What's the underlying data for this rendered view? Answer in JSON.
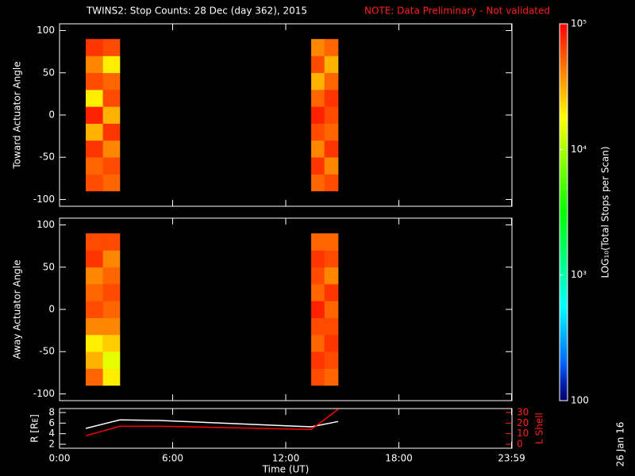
{
  "chart_data": [
    {
      "type": "heatmap",
      "title": "TWINS2: Stop Counts: 28 Dec (day 362), 2015",
      "note": "NOTE: Data Preliminary - Not validated",
      "ylabel": "Toward Actuator Angle",
      "ylim": [
        -108,
        108
      ],
      "yticks": [
        -100,
        -50,
        0,
        50,
        100
      ],
      "xlim": [
        0,
        24
      ],
      "segments": [
        {
          "x_edges": [
            1.39,
            2.3,
            3.2
          ],
          "y_edges": [
            -90,
            -70,
            -50,
            -30,
            -10,
            10,
            30,
            50,
            70,
            90
          ],
          "values": [
            [
              60000,
              50000,
              70000,
              30000,
              80000,
              20000,
              60000,
              40000,
              70000
            ],
            [
              50000,
              60000,
              40000,
              70000,
              30000,
              60000,
              50000,
              20000,
              60000
            ]
          ]
        },
        {
          "x_edges": [
            13.35,
            14.05,
            14.78
          ],
          "y_edges": [
            -90,
            -70,
            -50,
            -30,
            -10,
            10,
            30,
            50,
            70,
            90
          ],
          "values": [
            [
              50000,
              70000,
              40000,
              60000,
              80000,
              50000,
              30000,
              60000,
              40000
            ],
            [
              60000,
              40000,
              70000,
              50000,
              60000,
              70000,
              50000,
              30000,
              50000
            ]
          ]
        }
      ],
      "colorbar": {
        "label": "LOG₁₀(Total Stops per Scan)",
        "lim": [
          100,
          100000
        ],
        "log": true,
        "ticks": [
          {
            "value": 100,
            "label": "100"
          },
          {
            "value": 1000,
            "label": "10³"
          },
          {
            "value": 10000,
            "label": "10⁴"
          },
          {
            "value": 100000,
            "label": "10⁵"
          }
        ]
      }
    },
    {
      "type": "heatmap",
      "ylabel": "Away Actuator Angle",
      "ylim": [
        -108,
        108
      ],
      "yticks": [
        -100,
        -50,
        0,
        50,
        100
      ],
      "xlim": [
        0,
        24
      ],
      "segments": [
        {
          "x_edges": [
            1.39,
            2.3,
            3.2
          ],
          "y_edges": [
            -90,
            -70,
            -50,
            -30,
            -10,
            10,
            30,
            50,
            70,
            90
          ],
          "values": [
            [
              50000,
              30000,
              20000,
              40000,
              60000,
              50000,
              40000,
              70000,
              60000
            ],
            [
              20000,
              15000,
              25000,
              40000,
              50000,
              60000,
              50000,
              40000,
              60000
            ]
          ]
        },
        {
          "x_edges": [
            13.35,
            14.05,
            14.78
          ],
          "y_edges": [
            -90,
            -70,
            -50,
            -30,
            -10,
            10,
            30,
            50,
            70,
            90
          ],
          "values": [
            [
              60000,
              70000,
              50000,
              60000,
              80000,
              50000,
              60000,
              70000,
              50000
            ],
            [
              50000,
              60000,
              70000,
              60000,
              50000,
              70000,
              40000,
              60000,
              50000
            ]
          ]
        }
      ]
    },
    {
      "type": "line",
      "ylabel": "R [Rᴇ]",
      "y2label": "L Shell",
      "xlabel": "Time (UT)",
      "xlim": [
        0,
        24
      ],
      "xticks": [
        {
          "value": 0,
          "label": "0:00"
        },
        {
          "value": 6,
          "label": "6:00"
        },
        {
          "value": 12,
          "label": "12:00"
        },
        {
          "value": 18,
          "label": "18:00"
        },
        {
          "value": 23.98,
          "label": "23:59"
        }
      ],
      "ylim": [
        1.25,
        8.75
      ],
      "yticks": [
        2,
        4,
        6,
        8
      ],
      "y2lim": [
        -3.75,
        33.75
      ],
      "y2ticks": [
        0,
        10,
        20,
        30
      ],
      "x": [
        1.39,
        3.2,
        5.3,
        13.35,
        14.78
      ],
      "series": [
        {
          "color": "#ffffff",
          "values": [
            5.0,
            6.6,
            6.5,
            5.3,
            6.3
          ]
        },
        {
          "color": "#ff0000",
          "axis": "y2",
          "values": [
            8,
            17,
            17,
            14,
            33
          ]
        }
      ],
      "stamp": "26 Jan 16"
    }
  ]
}
